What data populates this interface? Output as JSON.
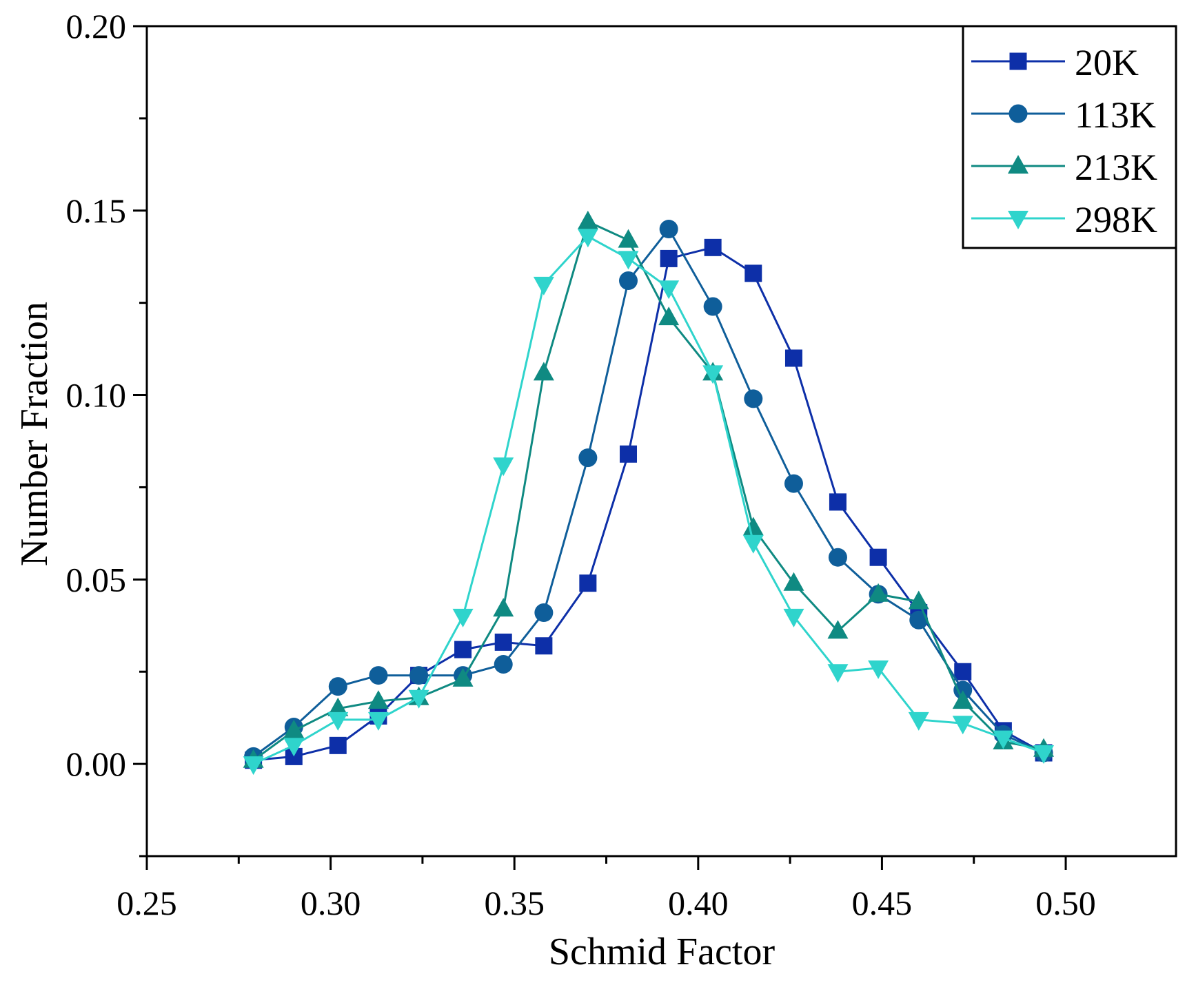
{
  "chart_data": {
    "type": "line",
    "xlabel": "Schmid Factor",
    "ylabel": "Number Fraction",
    "xlim": [
      0.25,
      0.53
    ],
    "ylim": [
      -0.025,
      0.2
    ],
    "x_ticks": [
      "0.25",
      "0.30",
      "0.35",
      "0.40",
      "0.45",
      "0.50"
    ],
    "y_ticks": [
      "0.00",
      "0.05",
      "0.10",
      "0.15",
      "0.20"
    ],
    "legend_position": "top-right",
    "series": [
      {
        "name": "20K",
        "marker": "square",
        "color": "#0d2fa8",
        "x": [
          0.279,
          0.29,
          0.302,
          0.313,
          0.324,
          0.336,
          0.347,
          0.358,
          0.37,
          0.381,
          0.392,
          0.404,
          0.415,
          0.426,
          0.438,
          0.449,
          0.46,
          0.472,
          0.483,
          0.494
        ],
        "y": [
          0.001,
          0.002,
          0.005,
          0.013,
          0.024,
          0.031,
          0.033,
          0.032,
          0.049,
          0.084,
          0.137,
          0.14,
          0.133,
          0.11,
          0.071,
          0.056,
          0.041,
          0.025,
          0.009,
          0.003
        ]
      },
      {
        "name": "113K",
        "marker": "circle",
        "color": "#0f5e9a",
        "x": [
          0.279,
          0.29,
          0.302,
          0.313,
          0.324,
          0.336,
          0.347,
          0.358,
          0.37,
          0.381,
          0.392,
          0.404,
          0.415,
          0.426,
          0.438,
          0.449,
          0.46,
          0.472,
          0.483,
          0.494
        ],
        "y": [
          0.002,
          0.01,
          0.021,
          0.024,
          0.024,
          0.024,
          0.027,
          0.041,
          0.083,
          0.131,
          0.145,
          0.124,
          0.099,
          0.076,
          0.056,
          0.046,
          0.039,
          0.02,
          0.008,
          0.003
        ]
      },
      {
        "name": "213K",
        "marker": "triangle-up",
        "color": "#0f8a82",
        "x": [
          0.279,
          0.29,
          0.302,
          0.313,
          0.324,
          0.336,
          0.347,
          0.358,
          0.37,
          0.381,
          0.392,
          0.404,
          0.415,
          0.426,
          0.438,
          0.449,
          0.46,
          0.472,
          0.483,
          0.494
        ],
        "y": [
          0.001,
          0.009,
          0.015,
          0.017,
          0.018,
          0.023,
          0.042,
          0.106,
          0.147,
          0.142,
          0.121,
          0.106,
          0.064,
          0.049,
          0.036,
          0.046,
          0.044,
          0.017,
          0.006,
          0.004
        ]
      },
      {
        "name": "298K",
        "marker": "triangle-down",
        "color": "#2fd4cc",
        "x": [
          0.279,
          0.29,
          0.302,
          0.313,
          0.324,
          0.336,
          0.347,
          0.358,
          0.37,
          0.381,
          0.392,
          0.404,
          0.415,
          0.426,
          0.438,
          0.449,
          0.46,
          0.472,
          0.483,
          0.494
        ],
        "y": [
          0.0,
          0.005,
          0.012,
          0.012,
          0.018,
          0.04,
          0.081,
          0.13,
          0.143,
          0.137,
          0.129,
          0.106,
          0.06,
          0.04,
          0.025,
          0.026,
          0.012,
          0.011,
          0.007,
          0.003
        ]
      }
    ]
  }
}
